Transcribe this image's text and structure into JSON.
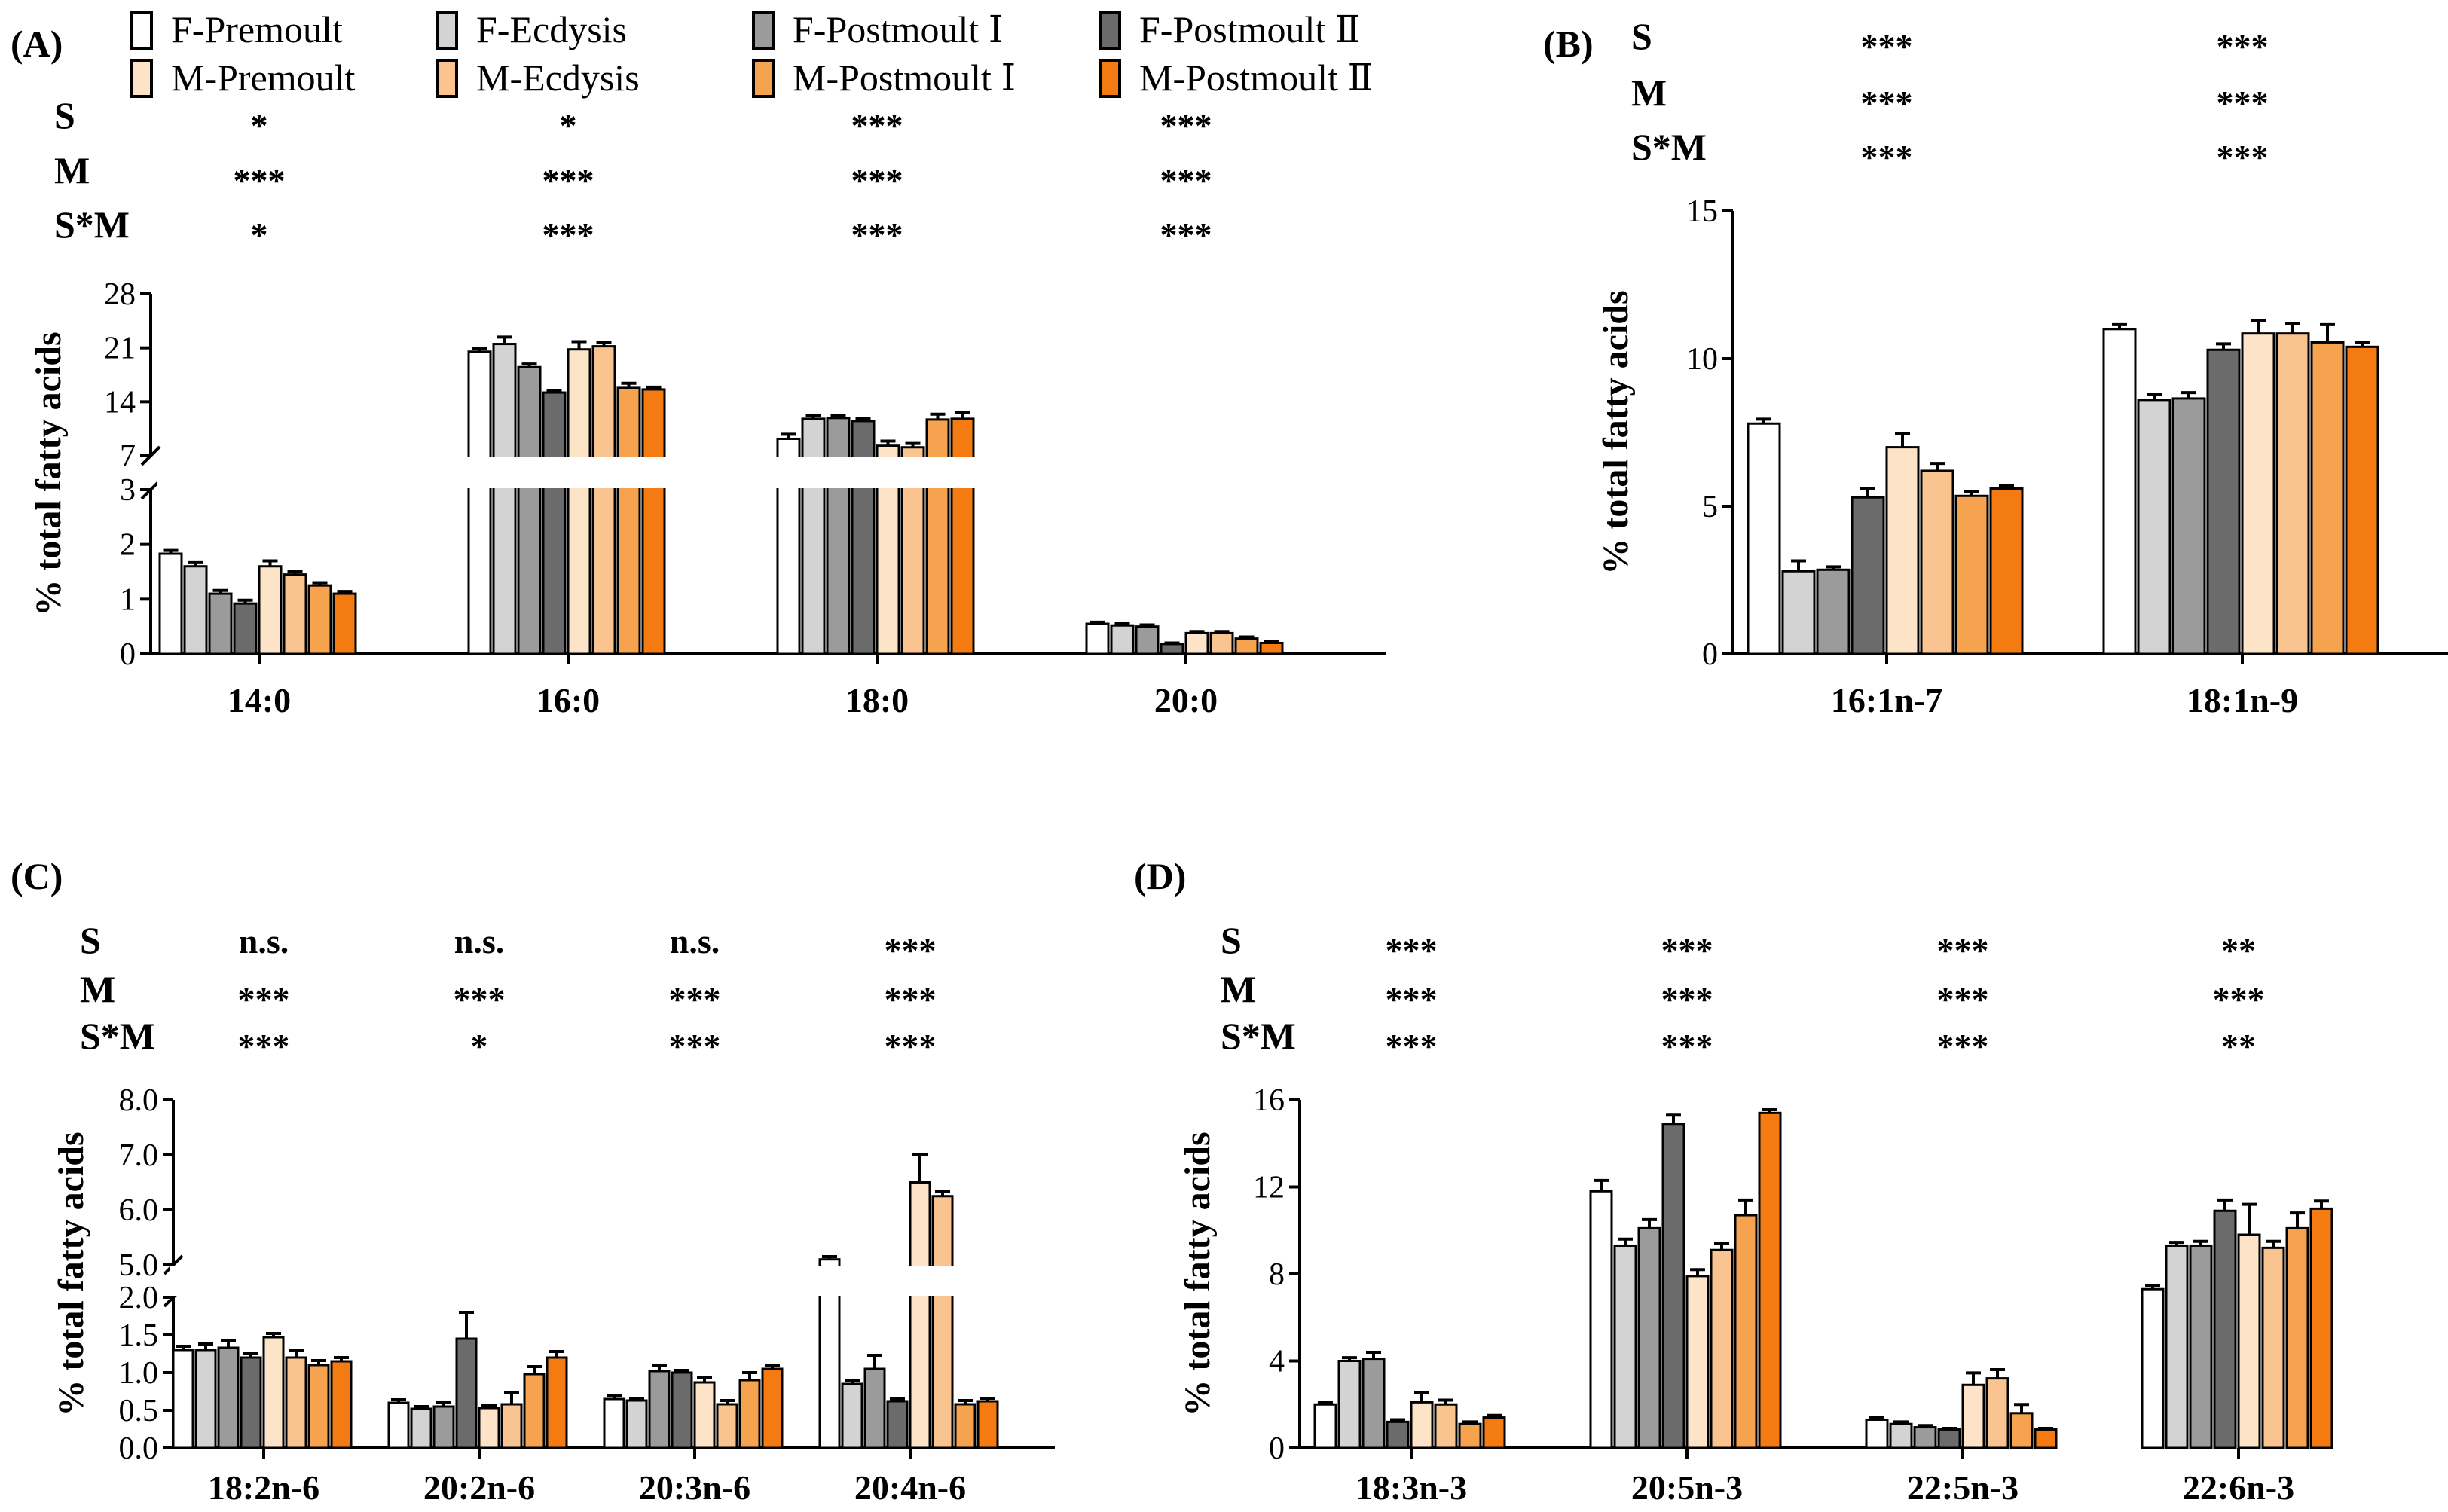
{
  "legend": [
    {
      "label": "F-Premoult",
      "color": "#ffffff"
    },
    {
      "label": "F-Ecdysis",
      "color": "#d3d3d3"
    },
    {
      "label": "F-Postmoult Ⅰ",
      "color": "#9b9b9b"
    },
    {
      "label": "F-Postmoult Ⅱ",
      "color": "#6b6b6b"
    },
    {
      "label": "M-Premoult",
      "color": "#fde3c8"
    },
    {
      "label": "M-Ecdysis",
      "color": "#f9c48f"
    },
    {
      "label": "M-Postmoult Ⅰ",
      "color": "#f6a34f"
    },
    {
      "label": "M-Postmoult Ⅱ",
      "color": "#f47b12"
    }
  ],
  "chart_data": [
    {
      "panel": "(A)",
      "type": "bar",
      "ylabel": "% total fatty acids",
      "categories": [
        "14:0",
        "16:0",
        "18:0",
        "20:0"
      ],
      "sig_rows": [
        "S",
        "M",
        "S*M"
      ],
      "sig": [
        [
          "*",
          "*",
          "***",
          "***"
        ],
        [
          "***",
          "***",
          "***",
          "***"
        ],
        [
          "*",
          "***",
          "***",
          "***"
        ]
      ],
      "axis_break": {
        "lower": [
          0,
          3
        ],
        "upper": [
          7,
          28
        ]
      },
      "ticks_lower": [
        "0",
        "1",
        "2",
        "3"
      ],
      "ticks_upper": [
        "7",
        "14",
        "21",
        "28"
      ],
      "series_values": [
        [
          1.83,
          1.6,
          1.1,
          0.92,
          1.6,
          1.45,
          1.25,
          1.1
        ],
        [
          20.5,
          21.5,
          18.5,
          15.2,
          20.8,
          21.2,
          15.8,
          15.6
        ],
        [
          9.2,
          11.8,
          11.9,
          11.5,
          8.3,
          8.1,
          11.7,
          11.8
        ],
        [
          0.55,
          0.52,
          0.5,
          0.18,
          0.38,
          0.38,
          0.28,
          0.2
        ]
      ],
      "errors": [
        [
          0.06,
          0.08,
          0.06,
          0.06,
          0.1,
          0.06,
          0.05,
          0.04
        ],
        [
          0.4,
          0.9,
          0.4,
          0.3,
          1.0,
          0.5,
          0.6,
          0.3
        ],
        [
          0.6,
          0.4,
          0.3,
          0.3,
          0.6,
          0.5,
          0.7,
          0.8
        ],
        [
          0.03,
          0.03,
          0.03,
          0.02,
          0.03,
          0.03,
          0.03,
          0.02
        ]
      ]
    },
    {
      "panel": "(B)",
      "type": "bar",
      "ylabel": "% total fatty acids",
      "categories": [
        "16:1n-7",
        "18:1n-9"
      ],
      "sig_rows": [
        "S",
        "M",
        "S*M"
      ],
      "sig": [
        [
          "***",
          "***"
        ],
        [
          "***",
          "***"
        ],
        [
          "***",
          "***"
        ]
      ],
      "ylim": [
        0,
        15
      ],
      "ticks": [
        "0",
        "5",
        "10",
        "15"
      ],
      "series_values": [
        [
          7.8,
          2.8,
          2.85,
          5.3,
          7.0,
          6.2,
          5.35,
          5.6
        ],
        [
          11.0,
          8.6,
          8.65,
          10.3,
          10.85,
          10.85,
          10.55,
          10.4
        ]
      ],
      "errors": [
        [
          0.15,
          0.35,
          0.1,
          0.3,
          0.45,
          0.25,
          0.15,
          0.1
        ],
        [
          0.15,
          0.2,
          0.2,
          0.2,
          0.45,
          0.35,
          0.6,
          0.15
        ]
      ]
    },
    {
      "panel": "(C)",
      "type": "bar",
      "ylabel": "% total fatty acids",
      "categories": [
        "18:2n-6",
        "20:2n-6",
        "20:3n-6",
        "20:4n-6"
      ],
      "sig_rows": [
        "S",
        "M",
        "S*M"
      ],
      "sig": [
        [
          "n.s.",
          "n.s.",
          "n.s.",
          "***"
        ],
        [
          "***",
          "***",
          "***",
          "***"
        ],
        [
          "***",
          "*",
          "***",
          "***"
        ]
      ],
      "axis_break": {
        "lower": [
          0,
          2.0
        ],
        "upper": [
          5.0,
          8.0
        ]
      },
      "ticks_lower": [
        "0.0",
        "0.5",
        "1.0",
        "1.5",
        "2.0"
      ],
      "ticks_upper": [
        "5.0",
        "6.0",
        "7.0",
        "8.0"
      ],
      "series_values": [
        [
          1.3,
          1.3,
          1.33,
          1.2,
          1.47,
          1.2,
          1.1,
          1.15
        ],
        [
          0.6,
          0.52,
          0.55,
          1.45,
          0.53,
          0.58,
          0.98,
          1.2
        ],
        [
          0.65,
          0.63,
          1.02,
          1.0,
          0.87,
          0.58,
          0.9,
          1.05
        ],
        [
          5.1,
          0.85,
          1.05,
          0.62,
          6.5,
          6.25,
          0.58,
          0.62
        ]
      ],
      "errors": [
        [
          0.05,
          0.08,
          0.1,
          0.06,
          0.05,
          0.1,
          0.06,
          0.05
        ],
        [
          0.04,
          0.03,
          0.06,
          0.35,
          0.03,
          0.15,
          0.1,
          0.08
        ],
        [
          0.04,
          0.03,
          0.08,
          0.03,
          0.06,
          0.05,
          0.1,
          0.04
        ],
        [
          0.05,
          0.05,
          0.18,
          0.03,
          0.5,
          0.08,
          0.05,
          0.04
        ]
      ]
    },
    {
      "panel": "(D)",
      "type": "bar",
      "ylabel": "% total fatty acids",
      "categories": [
        "18:3n-3",
        "20:5n-3",
        "22:5n-3",
        "22:6n-3"
      ],
      "sig_rows": [
        "S",
        "M",
        "S*M"
      ],
      "sig": [
        [
          "***",
          "***",
          "***",
          "**"
        ],
        [
          "***",
          "***",
          "***",
          "***"
        ],
        [
          "***",
          "***",
          "***",
          "**"
        ]
      ],
      "ylim": [
        0,
        16
      ],
      "ticks": [
        "0",
        "4",
        "8",
        "12",
        "16"
      ],
      "series_values": [
        [
          2.0,
          4.0,
          4.1,
          1.2,
          2.1,
          2.0,
          1.1,
          1.4
        ],
        [
          11.8,
          9.3,
          10.1,
          14.9,
          7.9,
          9.1,
          10.7,
          15.4
        ],
        [
          1.3,
          1.1,
          0.95,
          0.85,
          2.9,
          3.2,
          1.6,
          0.85
        ],
        [
          7.3,
          9.3,
          9.3,
          10.9,
          9.8,
          9.2,
          10.1,
          11.0
        ]
      ],
      "errors": [
        [
          0.1,
          0.15,
          0.3,
          0.1,
          0.45,
          0.2,
          0.1,
          0.1
        ],
        [
          0.5,
          0.3,
          0.4,
          0.4,
          0.3,
          0.3,
          0.7,
          0.15
        ],
        [
          0.1,
          0.1,
          0.08,
          0.05,
          0.55,
          0.4,
          0.4,
          0.05
        ],
        [
          0.15,
          0.15,
          0.2,
          0.5,
          1.4,
          0.3,
          0.7,
          0.35
        ]
      ]
    }
  ]
}
